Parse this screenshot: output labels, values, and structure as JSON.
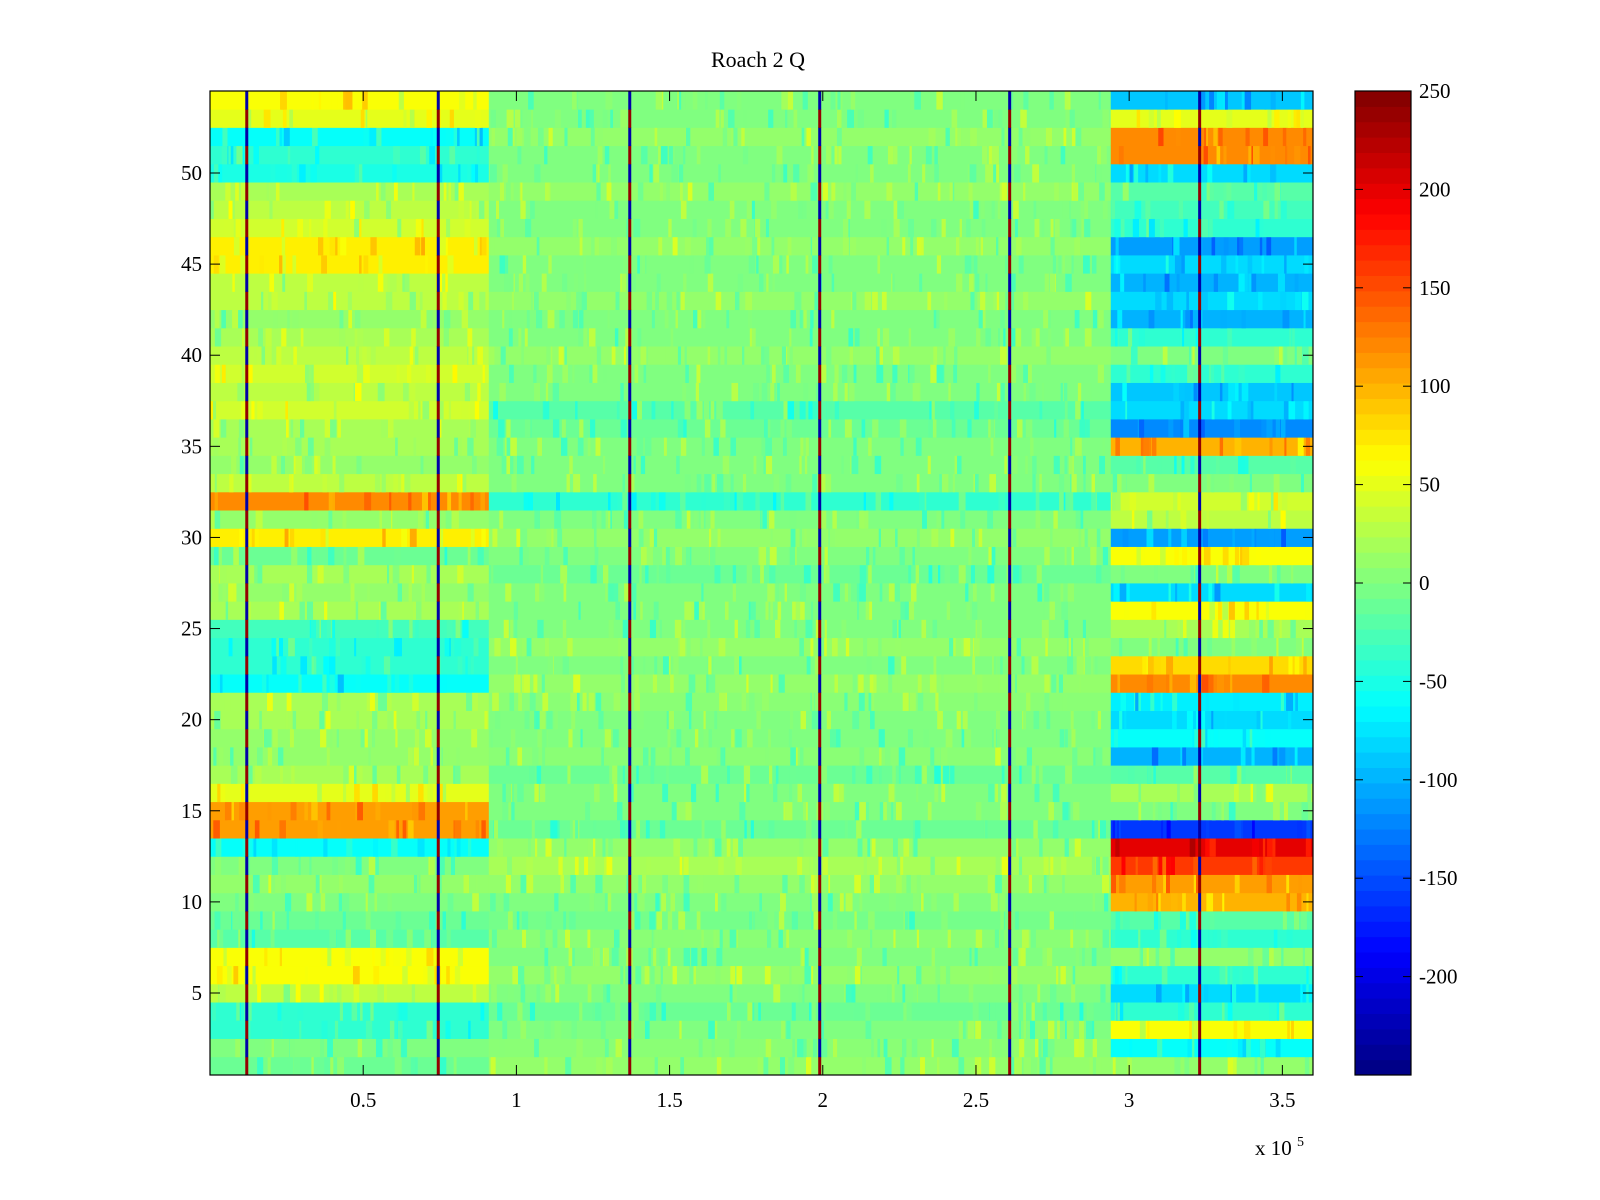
{
  "chart_data": {
    "type": "heatmap",
    "title": "Roach 2 Q",
    "xlabel": "",
    "ylabel": "",
    "x_multiplier": {
      "base": "x 10",
      "exponent": "5"
    },
    "x_range": [
      0,
      3.6
    ],
    "y_range": [
      0.5,
      54.5
    ],
    "rows": 54,
    "x_ticks": [
      0.5,
      1,
      1.5,
      2,
      2.5,
      3,
      3.5
    ],
    "x_tick_labels": [
      "0.5",
      "1",
      "1.5",
      "2",
      "2.5",
      "3",
      "3.5"
    ],
    "y_ticks": [
      5,
      10,
      15,
      20,
      25,
      30,
      35,
      40,
      45,
      50
    ],
    "y_tick_labels": [
      "5",
      "10",
      "15",
      "20",
      "25",
      "30",
      "35",
      "40",
      "45",
      "50"
    ],
    "colorbar": {
      "colormap": "jet",
      "range": [
        -250,
        250
      ],
      "ticks": [
        250,
        200,
        150,
        100,
        50,
        0,
        -50,
        -100,
        -150,
        -200
      ],
      "tick_labels": [
        "250",
        "200",
        "150",
        "100",
        "50",
        "0",
        "-50",
        "-100",
        "-150",
        "-200"
      ]
    },
    "segments": [
      {
        "x_start": 0,
        "x_end": 0.91,
        "row_values": [
          -10,
          0,
          -40,
          -40,
          30,
          60,
          60,
          -20,
          -10,
          0,
          10,
          0,
          -60,
          110,
          110,
          50,
          20,
          10,
          10,
          20,
          20,
          -60,
          -40,
          -40,
          -30,
          20,
          10,
          20,
          -10,
          70,
          10,
          120,
          30,
          10,
          20,
          20,
          40,
          30,
          40,
          30,
          20,
          10,
          30,
          30,
          70,
          70,
          40,
          30,
          20,
          -50,
          -40,
          -60,
          50,
          60
        ]
      },
      {
        "x_start": 0.91,
        "x_end": 2.94,
        "row_values": [
          10,
          5,
          0,
          -10,
          0,
          10,
          0,
          5,
          -5,
          0,
          10,
          20,
          10,
          -10,
          0,
          0,
          -10,
          5,
          0,
          0,
          5,
          10,
          0,
          10,
          0,
          0,
          0,
          -10,
          0,
          10,
          0,
          -40,
          0,
          0,
          0,
          -10,
          -20,
          0,
          0,
          10,
          0,
          0,
          10,
          0,
          0,
          10,
          0,
          0,
          10,
          0,
          0,
          10,
          0,
          0
        ]
      },
      {
        "x_start": 2.94,
        "x_end": 3.6,
        "row_values": [
          10,
          -60,
          60,
          -40,
          -80,
          -40,
          10,
          -40,
          -20,
          100,
          110,
          160,
          200,
          -160,
          0,
          20,
          -20,
          -100,
          -60,
          -80,
          -70,
          120,
          80,
          0,
          20,
          60,
          -80,
          0,
          60,
          -110,
          30,
          40,
          0,
          -20,
          100,
          -120,
          -80,
          -90,
          -40,
          0,
          -40,
          -100,
          -80,
          -100,
          -80,
          -110,
          -40,
          -30,
          -20,
          -80,
          120,
          120,
          50,
          -90
        ]
      }
    ],
    "spike_columns_x": [
      0.12,
      0.745,
      1.37,
      1.99,
      2.61,
      3.23
    ],
    "annotations": []
  }
}
